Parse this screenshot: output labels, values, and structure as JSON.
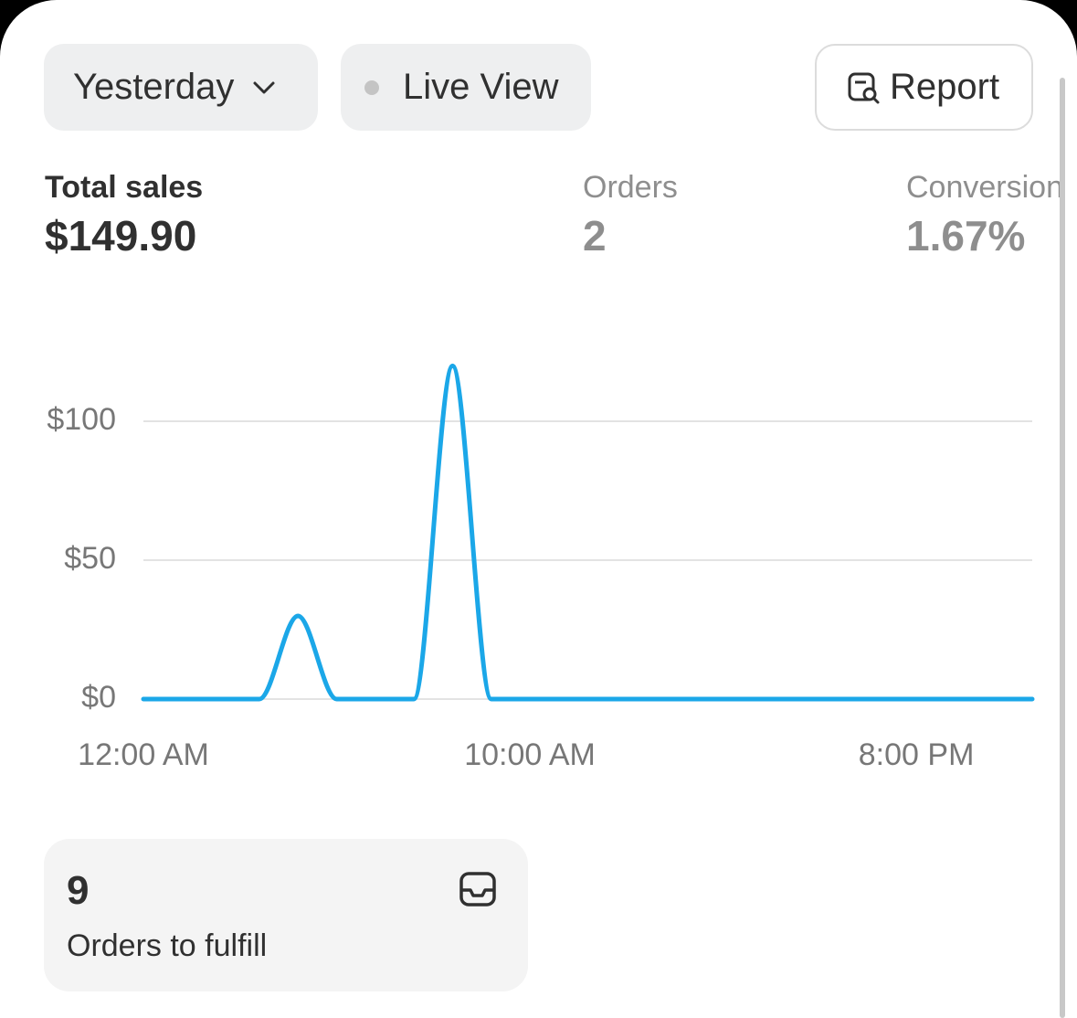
{
  "toolbar": {
    "period": "Yesterday",
    "live": "Live View",
    "report": "Report"
  },
  "metrics": [
    {
      "label": "Total sales",
      "value": "$149.90"
    },
    {
      "label": "Orders",
      "value": "2"
    },
    {
      "label": "Conversion",
      "value": "1.67%"
    }
  ],
  "chart_data": {
    "type": "line",
    "x": [
      0,
      1,
      2,
      3,
      4,
      5,
      6,
      7,
      8,
      9,
      10,
      11,
      12,
      13,
      14,
      15,
      16,
      17,
      18,
      19,
      20,
      21,
      22,
      23
    ],
    "series": [
      {
        "color": "#1ba7e8",
        "values": [
          0,
          0,
          0,
          0,
          29.95,
          0,
          0,
          0,
          119.95,
          0,
          0,
          0,
          0,
          0,
          0,
          0,
          0,
          0,
          0,
          0,
          0,
          0,
          0,
          0
        ]
      }
    ],
    "xlim": [
      0,
      23
    ],
    "xticks": [
      {
        "value": 0,
        "label": "12:00 AM"
      },
      {
        "value": 10,
        "label": "10:00 AM"
      },
      {
        "value": 20,
        "label": "8:00 PM"
      }
    ],
    "ylim": [
      0,
      140
    ],
    "yticks": [
      {
        "value": 0,
        "label": "$0"
      },
      {
        "value": 50,
        "label": "$50"
      },
      {
        "value": 100,
        "label": "$100"
      }
    ],
    "grid": true
  },
  "card": {
    "count": "9",
    "label": "Orders to fulfill"
  }
}
